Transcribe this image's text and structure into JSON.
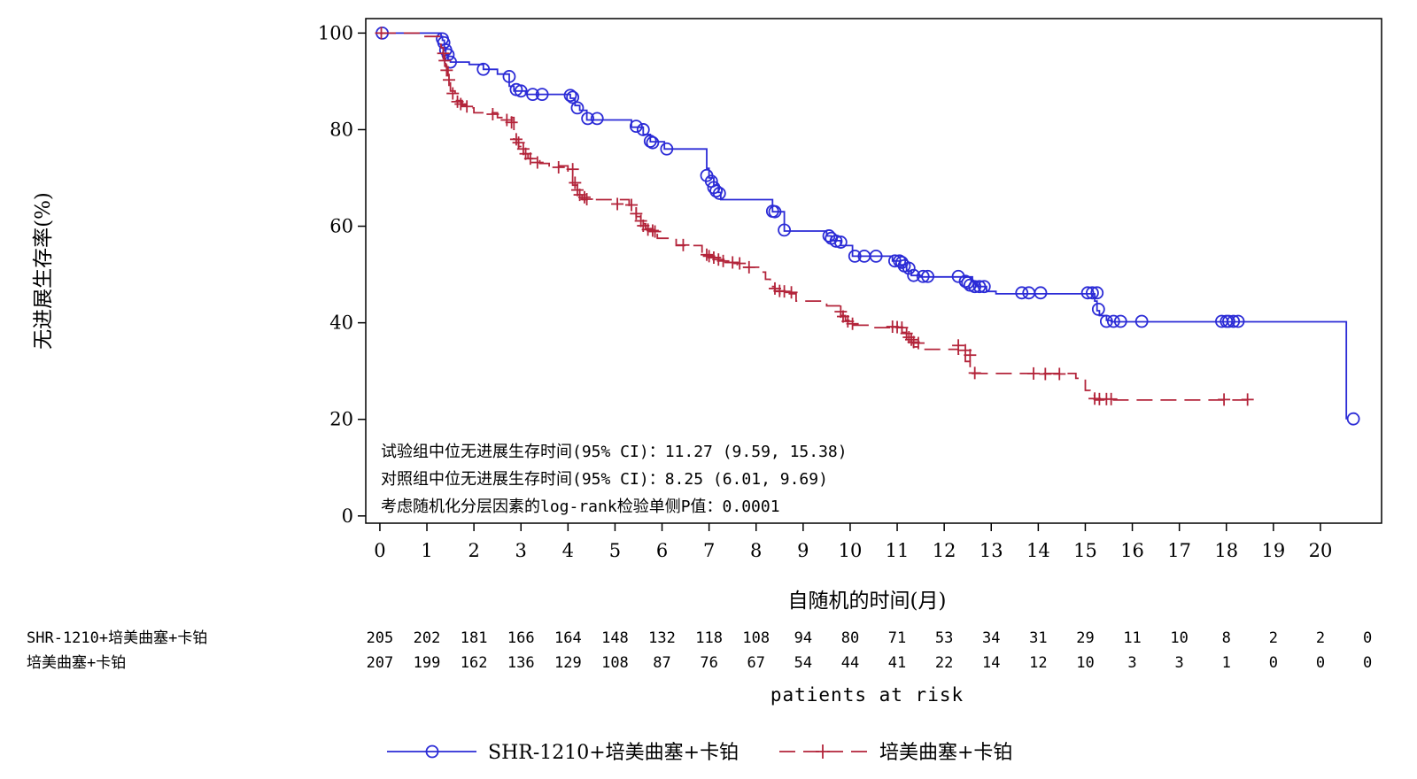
{
  "chart_data": {
    "type": "line",
    "title": "",
    "xlabel": "自随机的时间(月)",
    "ylabel": "无进展生存率(%)",
    "xlim": [
      -0.3,
      21.3
    ],
    "ylim": [
      -1.5,
      103
    ],
    "xticks": [
      0,
      1,
      2,
      3,
      4,
      5,
      6,
      7,
      8,
      9,
      10,
      11,
      12,
      13,
      14,
      15,
      16,
      17,
      18,
      19,
      20
    ],
    "yticks": [
      0,
      20,
      40,
      60,
      80,
      100
    ],
    "series": [
      {
        "name": "SHR-1210+培美曲塞+卡铂",
        "color": "#2b2bd6",
        "style": "solid",
        "marker": "circle",
        "steps": [
          [
            0,
            100
          ],
          [
            1.3,
            99.3
          ],
          [
            1.33,
            98.5
          ],
          [
            1.37,
            97
          ],
          [
            1.4,
            95.5
          ],
          [
            1.45,
            94.5
          ],
          [
            1.5,
            94
          ],
          [
            1.9,
            93.5
          ],
          [
            2.2,
            92.5
          ],
          [
            2.5,
            91.5
          ],
          [
            2.75,
            89
          ],
          [
            2.85,
            88
          ],
          [
            3.1,
            87.3
          ],
          [
            4.05,
            86.5
          ],
          [
            4.15,
            85
          ],
          [
            4.25,
            84
          ],
          [
            4.4,
            82
          ],
          [
            5.35,
            80.5
          ],
          [
            5.6,
            79
          ],
          [
            5.75,
            77.5
          ],
          [
            6.05,
            76
          ],
          [
            6.95,
            72
          ],
          [
            7.0,
            70
          ],
          [
            7.1,
            68.5
          ],
          [
            7.2,
            67
          ],
          [
            7.25,
            65.5
          ],
          [
            8.35,
            63
          ],
          [
            8.6,
            59
          ],
          [
            9.5,
            58
          ],
          [
            9.6,
            57
          ],
          [
            9.8,
            56
          ],
          [
            10.05,
            53.8
          ],
          [
            10.9,
            52.8
          ],
          [
            11.05,
            52
          ],
          [
            11.2,
            50.7
          ],
          [
            11.3,
            49.8
          ],
          [
            11.5,
            49.5
          ],
          [
            12.6,
            48.5
          ],
          [
            12.7,
            47.5
          ],
          [
            12.9,
            46.5
          ],
          [
            13.1,
            46
          ],
          [
            15.2,
            44.5
          ],
          [
            15.25,
            42.5
          ],
          [
            15.3,
            41.5
          ],
          [
            15.45,
            40.5
          ],
          [
            15.55,
            40.2
          ],
          [
            20.55,
            20
          ]
        ],
        "censors": [
          [
            0.05,
            100
          ],
          [
            1.33,
            98.8
          ],
          [
            1.36,
            98
          ],
          [
            1.4,
            96.5
          ],
          [
            1.45,
            95.5
          ],
          [
            1.5,
            94
          ],
          [
            2.2,
            92.5
          ],
          [
            2.75,
            91
          ],
          [
            2.9,
            88.3
          ],
          [
            3.0,
            88
          ],
          [
            3.25,
            87.3
          ],
          [
            3.45,
            87.3
          ],
          [
            4.05,
            87.1
          ],
          [
            4.1,
            86.7
          ],
          [
            4.2,
            84.5
          ],
          [
            4.42,
            82.3
          ],
          [
            4.62,
            82.3
          ],
          [
            5.45,
            80.7
          ],
          [
            5.6,
            80
          ],
          [
            5.75,
            77.6
          ],
          [
            5.8,
            77.3
          ],
          [
            6.1,
            76
          ],
          [
            6.95,
            70.5
          ],
          [
            7.05,
            69.3
          ],
          [
            7.1,
            68
          ],
          [
            7.15,
            67.3
          ],
          [
            7.22,
            66.8
          ],
          [
            8.35,
            63.1
          ],
          [
            8.4,
            63
          ],
          [
            8.6,
            59.2
          ],
          [
            9.55,
            58
          ],
          [
            9.6,
            57.5
          ],
          [
            9.7,
            56.9
          ],
          [
            9.8,
            56.7
          ],
          [
            10.1,
            53.8
          ],
          [
            10.3,
            53.8
          ],
          [
            10.55,
            53.8
          ],
          [
            10.95,
            52.8
          ],
          [
            11.05,
            52.8
          ],
          [
            11.1,
            52.5
          ],
          [
            11.15,
            51.8
          ],
          [
            11.25,
            51.3
          ],
          [
            11.35,
            49.8
          ],
          [
            11.55,
            49.6
          ],
          [
            11.65,
            49.6
          ],
          [
            12.3,
            49.6
          ],
          [
            12.45,
            48.6
          ],
          [
            12.5,
            48.3
          ],
          [
            12.55,
            47.8
          ],
          [
            12.65,
            47.5
          ],
          [
            12.75,
            47.5
          ],
          [
            12.85,
            47.5
          ],
          [
            13.65,
            46.2
          ],
          [
            13.8,
            46.2
          ],
          [
            14.05,
            46.2
          ],
          [
            15.05,
            46.2
          ],
          [
            15.15,
            46.2
          ],
          [
            15.25,
            46.2
          ],
          [
            15.28,
            42.8
          ],
          [
            15.45,
            40.3
          ],
          [
            15.6,
            40.3
          ],
          [
            15.75,
            40.3
          ],
          [
            16.2,
            40.3
          ],
          [
            17.9,
            40.3
          ],
          [
            18.0,
            40.3
          ],
          [
            18.05,
            40.3
          ],
          [
            18.15,
            40.3
          ],
          [
            18.25,
            40.3
          ],
          [
            20.7,
            20.1
          ]
        ]
      },
      {
        "name": "培美曲塞+卡铂",
        "color": "#b3243a",
        "style": "dashed",
        "marker": "plus",
        "steps": [
          [
            0,
            100
          ],
          [
            0.9,
            99.3
          ],
          [
            1.3,
            97
          ],
          [
            1.35,
            95
          ],
          [
            1.4,
            93
          ],
          [
            1.45,
            91
          ],
          [
            1.5,
            88
          ],
          [
            1.6,
            86
          ],
          [
            1.75,
            85
          ],
          [
            1.9,
            84.5
          ],
          [
            2.0,
            83.5
          ],
          [
            2.5,
            82.5
          ],
          [
            2.85,
            78
          ],
          [
            2.95,
            76.5
          ],
          [
            3.05,
            75
          ],
          [
            3.15,
            74
          ],
          [
            3.4,
            73
          ],
          [
            3.6,
            72.5
          ],
          [
            4.0,
            70.5
          ],
          [
            4.1,
            68.5
          ],
          [
            4.2,
            66.5
          ],
          [
            4.3,
            65.5
          ],
          [
            5.3,
            64
          ],
          [
            5.45,
            62
          ],
          [
            5.55,
            60.5
          ],
          [
            5.65,
            59.5
          ],
          [
            5.8,
            58.5
          ],
          [
            5.9,
            57.5
          ],
          [
            6.3,
            56
          ],
          [
            6.85,
            54
          ],
          [
            7.0,
            53.5
          ],
          [
            7.3,
            52.5
          ],
          [
            7.6,
            51.5
          ],
          [
            8.1,
            50.5
          ],
          [
            8.2,
            49
          ],
          [
            8.3,
            47.5
          ],
          [
            8.4,
            46.5
          ],
          [
            8.5,
            46
          ],
          [
            8.85,
            44.5
          ],
          [
            9.5,
            43.5
          ],
          [
            9.8,
            41.5
          ],
          [
            9.9,
            40.5
          ],
          [
            10.05,
            39.5
          ],
          [
            10.5,
            39
          ],
          [
            11.1,
            38
          ],
          [
            11.2,
            37
          ],
          [
            11.25,
            36
          ],
          [
            11.35,
            35
          ],
          [
            11.45,
            34.5
          ],
          [
            12.3,
            33.5
          ],
          [
            12.45,
            32
          ],
          [
            12.55,
            30.5
          ],
          [
            12.6,
            29.5
          ],
          [
            14.8,
            28.5
          ],
          [
            15.0,
            26
          ],
          [
            15.1,
            25
          ],
          [
            15.2,
            24
          ],
          [
            18.45,
            24
          ]
        ],
        "censors": [
          [
            0.03,
            100
          ],
          [
            1.35,
            95.8
          ],
          [
            1.38,
            94.3
          ],
          [
            1.42,
            92.3
          ],
          [
            1.47,
            90.3
          ],
          [
            1.55,
            87.5
          ],
          [
            1.65,
            85.8
          ],
          [
            1.72,
            85.3
          ],
          [
            1.85,
            84.8
          ],
          [
            2.4,
            83.2
          ],
          [
            2.7,
            82
          ],
          [
            2.8,
            81.5
          ],
          [
            2.9,
            78
          ],
          [
            2.95,
            77.3
          ],
          [
            3.05,
            76
          ],
          [
            3.1,
            75
          ],
          [
            3.2,
            74
          ],
          [
            3.35,
            73.2
          ],
          [
            3.8,
            72.2
          ],
          [
            4.1,
            71.8
          ],
          [
            4.15,
            69
          ],
          [
            4.2,
            67.5
          ],
          [
            4.25,
            66.5
          ],
          [
            4.35,
            66
          ],
          [
            4.4,
            65.6
          ],
          [
            5.05,
            64.6
          ],
          [
            5.35,
            64.4
          ],
          [
            5.45,
            62.6
          ],
          [
            5.55,
            61.1
          ],
          [
            5.6,
            60.1
          ],
          [
            5.7,
            59.3
          ],
          [
            5.8,
            59.1
          ],
          [
            5.85,
            58.9
          ],
          [
            6.45,
            56.1
          ],
          [
            6.95,
            54.1
          ],
          [
            7.0,
            53.8
          ],
          [
            7.1,
            53.5
          ],
          [
            7.2,
            53.1
          ],
          [
            7.3,
            52.8
          ],
          [
            7.5,
            52.5
          ],
          [
            7.65,
            52.3
          ],
          [
            7.85,
            51.5
          ],
          [
            8.4,
            47.1
          ],
          [
            8.5,
            46.6
          ],
          [
            8.6,
            46.5
          ],
          [
            8.75,
            46.3
          ],
          [
            9.8,
            42.3
          ],
          [
            9.85,
            41.3
          ],
          [
            9.95,
            40.3
          ],
          [
            10.05,
            39.8
          ],
          [
            10.9,
            39.2
          ],
          [
            11.0,
            39.1
          ],
          [
            11.1,
            39
          ],
          [
            11.2,
            37.8
          ],
          [
            11.25,
            37
          ],
          [
            11.3,
            36.5
          ],
          [
            11.35,
            36
          ],
          [
            11.45,
            35.8
          ],
          [
            12.3,
            35.3
          ],
          [
            12.45,
            34.3
          ],
          [
            12.55,
            33.3
          ],
          [
            12.65,
            29.6
          ],
          [
            13.9,
            29.5
          ],
          [
            14.15,
            29.4
          ],
          [
            14.45,
            29.4
          ],
          [
            15.2,
            24.3
          ],
          [
            15.3,
            24.2
          ],
          [
            15.45,
            24.2
          ],
          [
            15.55,
            24.2
          ],
          [
            17.95,
            24.1
          ],
          [
            18.45,
            24.1
          ]
        ]
      }
    ],
    "annotations": [
      "试验组中位无进展生存时间(95% CI)：11.27 (9.59, 15.38)",
      "对照组中位无进展生存时间(95% CI)：8.25 (6.01, 9.69)",
      "考虑随机化分层因素的log-rank检验单侧P值：0.0001"
    ],
    "risk_table": {
      "title": "patients at risk",
      "times": [
        0,
        1,
        2,
        3,
        4,
        5,
        6,
        7,
        8,
        9,
        10,
        11,
        12,
        13,
        14,
        15,
        16,
        17,
        18,
        19,
        20,
        21
      ],
      "rows": [
        {
          "label": "SHR-1210+培美曲塞+卡铂",
          "values": [
            205,
            202,
            181,
            166,
            164,
            148,
            132,
            118,
            108,
            94,
            80,
            71,
            53,
            34,
            31,
            29,
            11,
            10,
            8,
            2,
            2,
            0
          ]
        },
        {
          "label": "培美曲塞+卡铂",
          "values": [
            207,
            199,
            162,
            136,
            129,
            108,
            87,
            76,
            67,
            54,
            44,
            41,
            22,
            14,
            12,
            10,
            3,
            3,
            1,
            0,
            0,
            0
          ]
        }
      ]
    },
    "legend": {
      "position": "bottom",
      "entries": [
        "SHR-1210+培美曲塞+卡铂",
        "培美曲塞+卡铂"
      ]
    }
  }
}
